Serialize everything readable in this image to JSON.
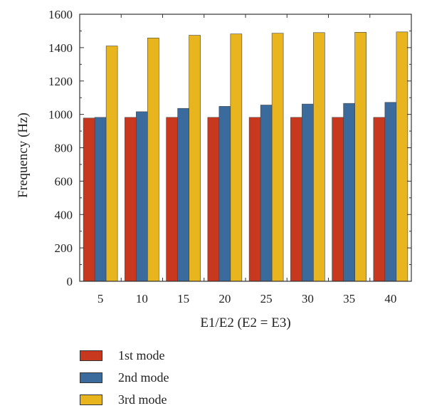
{
  "chart_data": {
    "type": "bar",
    "categories": [
      "5",
      "10",
      "15",
      "20",
      "25",
      "30",
      "35",
      "40"
    ],
    "series": [
      {
        "name": "1st mode",
        "color": "#c8381e",
        "values": [
          978,
          982,
          982,
          982,
          982,
          982,
          982,
          982
        ]
      },
      {
        "name": "2nd mode",
        "color": "#3b6a9c",
        "values": [
          982,
          1016,
          1036,
          1048,
          1056,
          1062,
          1066,
          1072
        ]
      },
      {
        "name": "3rd mode",
        "color": "#e8b51e",
        "values": [
          1410,
          1458,
          1474,
          1482,
          1486,
          1490,
          1492,
          1494
        ]
      }
    ],
    "title": "",
    "xlabel": "E1/E2 (E2 = E3)",
    "ylabel": "Frequency (Hz)",
    "ylim": [
      0,
      1600
    ],
    "yticks": [
      "0",
      "200",
      "400",
      "600",
      "800",
      "1000",
      "1200",
      "1400",
      "1600"
    ],
    "grid": false,
    "legend_position": "bottom-left, below axes"
  }
}
